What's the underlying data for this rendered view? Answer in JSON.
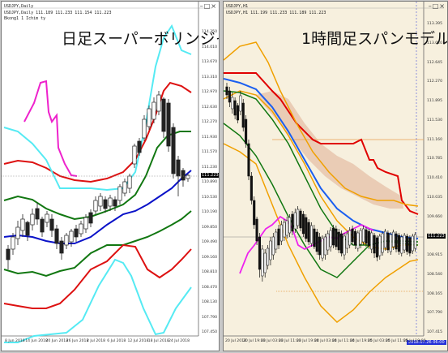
{
  "left_chart": {
    "window_title": "USDJPY,Daily",
    "info_line1": "USDJPY,Daily  111.189 111.233 111.154 111.223",
    "info_line2": "Bkong1 1 Ichim ty",
    "overlay_title": "日足スーパーボリンジャー",
    "current_price": "111.223",
    "y_ticks": [
      "114.350",
      "114.010",
      "113.670",
      "113.310",
      "112.970",
      "112.630",
      "112.270",
      "111.930",
      "111.570",
      "111.230",
      "110.890",
      "110.530",
      "110.190",
      "109.850",
      "109.490",
      "109.160",
      "108.810",
      "108.470",
      "108.130",
      "107.790",
      "107.450"
    ],
    "x_ticks": [
      "8 Jun 2018",
      "14 Jun 2018",
      "20 Jun 2018",
      "26 Jun 2018",
      "2 Jul 2018",
      "6 Jul 2018",
      "12 Jul 2018",
      "18 Jul 2018",
      "24 Jul 2018"
    ],
    "colors": {
      "sigma3": "#55eaf3",
      "sigma2": "#dd1111",
      "sigma1": "#117711",
      "mid": "#0a12c8",
      "chikou": "#ee22cc",
      "candle": "#222222"
    }
  },
  "right_chart": {
    "window_title": "USDJPY,H1",
    "info_line1": "USDJPY,H1  111.199 111.233 111.189 111.223",
    "overlay_title": "1時間足スパンモデル",
    "current_price": "111.223",
    "date_label": "2018.07.26 06:00",
    "y_ticks": [
      "113.395",
      "113.020",
      "112.645",
      "112.270",
      "111.895",
      "111.530",
      "111.160",
      "110.785",
      "110.410",
      "110.035",
      "109.660",
      "109.290",
      "108.915",
      "108.540",
      "108.165",
      "107.790",
      "107.415"
    ],
    "x_ticks": [
      "20 Jul 2018",
      "20 Jul 19:00",
      "23 Jul 03:00",
      "23 Jul 11:00",
      "23 Jul 19:00",
      "24 Jul 03:00",
      "24 Jul 11:00",
      "24 Jul 19:00",
      "25 Jul 03:00",
      "25 Jul 11:00",
      "25 Jul 19:00"
    ],
    "colors": {
      "bg": "#f7f0de",
      "red_span": "#e00000",
      "orange": "#f0a000",
      "blue": "#1a5ef0",
      "green": "#117711",
      "magenta": "#ee22ee",
      "candle": "#111111",
      "cloud": "#d08a6a",
      "level_line": "#e8a050"
    }
  }
}
